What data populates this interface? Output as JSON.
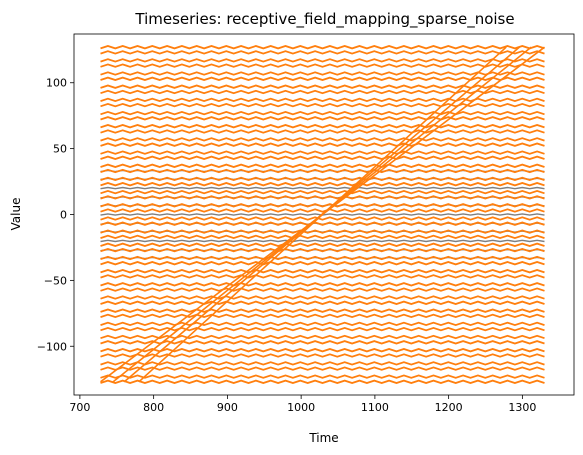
{
  "chart_data": {
    "type": "line",
    "title": "Timeseries: receptive_field_mapping_sparse_noise",
    "xlabel": "Time",
    "ylabel": "Value",
    "xlim": [
      692,
      1370
    ],
    "ylim": [
      -137,
      137
    ],
    "xticks": [
      700,
      800,
      900,
      1000,
      1100,
      1200,
      1300
    ],
    "yticks": [
      -100,
      -50,
      0,
      50,
      100
    ],
    "grid": false,
    "legend": "none",
    "series": [
      {
        "color": "#7f7f7f",
        "levels": [
          -33,
          -27,
          -20,
          -13,
          -7,
          0,
          7,
          13,
          20,
          27,
          33
        ],
        "x_range": [
          728,
          1330
        ]
      },
      {
        "color": "#ff7f0e",
        "levels": [
          -127,
          -123,
          -117,
          -113,
          -107,
          -103,
          -97,
          -93,
          -87,
          -83,
          -77,
          -73,
          -67,
          -63,
          -57,
          -53,
          -47,
          -43,
          -37,
          -33,
          -27,
          -23,
          -17,
          -13,
          -7,
          -3,
          3,
          7,
          13,
          17,
          23,
          27,
          33,
          37,
          43,
          47,
          53,
          57,
          63,
          67,
          73,
          77,
          83,
          87,
          93,
          97,
          103,
          107,
          113,
          117,
          123,
          127
        ],
        "x_range": [
          728,
          1330
        ],
        "diagonals": [
          {
            "x": [
              728,
              1330
            ],
            "y": [
              -127,
              127
            ]
          },
          {
            "x": [
              745,
              1312
            ],
            "y": [
              -127,
              127
            ]
          },
          {
            "x": [
              760,
              1296
            ],
            "y": [
              -127,
              127
            ]
          },
          {
            "x": [
              780,
              1278
            ],
            "y": [
              -127,
              127
            ]
          }
        ]
      }
    ]
  }
}
